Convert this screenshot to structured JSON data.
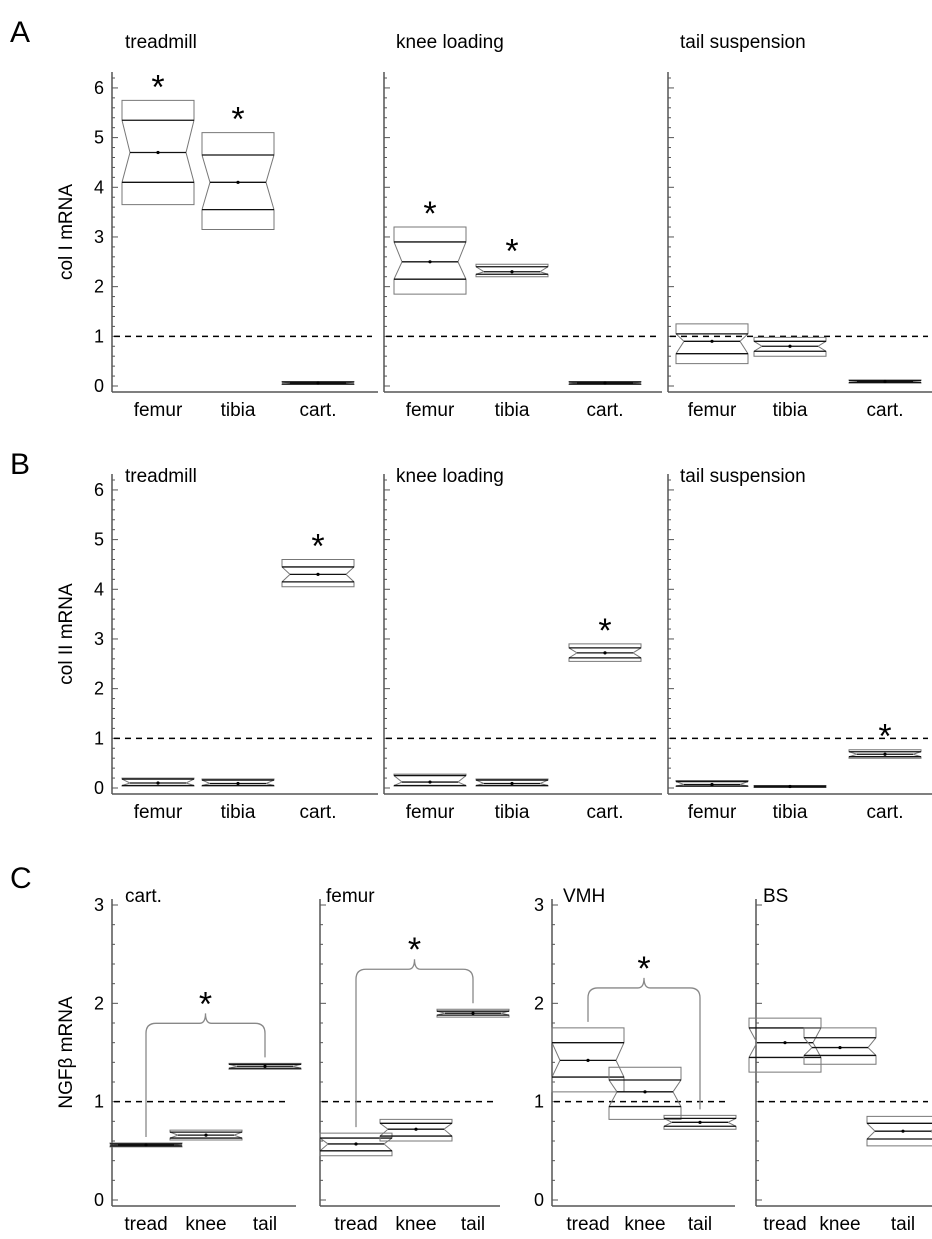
{
  "figure": {
    "panel_letters": [
      "A",
      "B",
      "C"
    ]
  },
  "chart_data": [
    {
      "type": "box",
      "panel": "A",
      "ylabel": "col I mRNA",
      "ylim": [
        0,
        6.2
      ],
      "yticks": [
        0,
        1,
        2,
        3,
        4,
        5,
        6
      ],
      "reference_line": 1,
      "show_y_numbers": true,
      "title": "treadmill",
      "categories": [
        "femur",
        "tibia",
        "cart."
      ],
      "boxes": [
        {
          "q1": 4.1,
          "median": 4.7,
          "q3": 5.35,
          "lo": 3.65,
          "hi": 5.75,
          "star": true
        },
        {
          "q1": 3.55,
          "median": 4.1,
          "q3": 4.65,
          "lo": 3.15,
          "hi": 5.1,
          "star": true
        },
        {
          "q1": 0.04,
          "median": 0.06,
          "q3": 0.08,
          "lo": 0.03,
          "hi": 0.09,
          "star": false
        }
      ]
    },
    {
      "type": "box",
      "panel": "A",
      "ylim": [
        0,
        6.2
      ],
      "yticks": [
        0,
        1,
        2,
        3,
        4,
        5,
        6
      ],
      "reference_line": 1,
      "show_y_numbers": false,
      "title": "knee loading",
      "categories": [
        "femur",
        "tibia",
        "cart."
      ],
      "boxes": [
        {
          "q1": 2.15,
          "median": 2.5,
          "q3": 2.9,
          "lo": 1.85,
          "hi": 3.2,
          "star": true
        },
        {
          "q1": 2.25,
          "median": 2.3,
          "q3": 2.4,
          "lo": 2.2,
          "hi": 2.45,
          "star": true
        },
        {
          "q1": 0.04,
          "median": 0.06,
          "q3": 0.08,
          "lo": 0.03,
          "hi": 0.09,
          "star": false
        }
      ]
    },
    {
      "type": "box",
      "panel": "A",
      "ylim": [
        0,
        6.2
      ],
      "yticks": [
        0,
        1,
        2,
        3,
        4,
        5,
        6
      ],
      "reference_line": 1,
      "show_y_numbers": false,
      "title": "tail suspension",
      "categories": [
        "femur",
        "tibia",
        "cart."
      ],
      "boxes": [
        {
          "q1": 0.65,
          "median": 0.9,
          "q3": 1.05,
          "lo": 0.45,
          "hi": 1.25,
          "star": false
        },
        {
          "q1": 0.7,
          "median": 0.8,
          "q3": 0.9,
          "lo": 0.6,
          "hi": 0.98,
          "star": false
        },
        {
          "q1": 0.07,
          "median": 0.09,
          "q3": 0.11,
          "lo": 0.06,
          "hi": 0.12,
          "star": false
        }
      ]
    },
    {
      "type": "box",
      "panel": "B",
      "ylabel": "col II mRNA",
      "ylim": [
        0,
        6.2
      ],
      "yticks": [
        0,
        1,
        2,
        3,
        4,
        5,
        6
      ],
      "reference_line": 1,
      "show_y_numbers": true,
      "title": "treadmill",
      "categories": [
        "femur",
        "tibia",
        "cart."
      ],
      "boxes": [
        {
          "q1": 0.05,
          "median": 0.1,
          "q3": 0.18,
          "lo": 0.04,
          "hi": 0.2,
          "star": false
        },
        {
          "q1": 0.05,
          "median": 0.09,
          "q3": 0.16,
          "lo": 0.04,
          "hi": 0.18,
          "star": false
        },
        {
          "q1": 4.15,
          "median": 4.3,
          "q3": 4.45,
          "lo": 4.05,
          "hi": 4.6,
          "star": true
        }
      ]
    },
    {
      "type": "box",
      "panel": "B",
      "ylim": [
        0,
        6.2
      ],
      "yticks": [
        0,
        1,
        2,
        3,
        4,
        5,
        6
      ],
      "reference_line": 1,
      "show_y_numbers": false,
      "title": "knee loading",
      "categories": [
        "femur",
        "tibia",
        "cart."
      ],
      "boxes": [
        {
          "q1": 0.05,
          "median": 0.12,
          "q3": 0.25,
          "lo": 0.04,
          "hi": 0.28,
          "star": false
        },
        {
          "q1": 0.05,
          "median": 0.09,
          "q3": 0.16,
          "lo": 0.04,
          "hi": 0.18,
          "star": false
        },
        {
          "q1": 2.62,
          "median": 2.72,
          "q3": 2.82,
          "lo": 2.55,
          "hi": 2.9,
          "star": true
        }
      ]
    },
    {
      "type": "box",
      "panel": "B",
      "ylim": [
        0,
        6.2
      ],
      "yticks": [
        0,
        1,
        2,
        3,
        4,
        5,
        6
      ],
      "reference_line": 1,
      "show_y_numbers": false,
      "title": "tail suspension",
      "categories": [
        "femur",
        "tibia",
        "cart."
      ],
      "boxes": [
        {
          "q1": 0.04,
          "median": 0.07,
          "q3": 0.13,
          "lo": 0.03,
          "hi": 0.15,
          "star": false
        },
        {
          "q1": 0.02,
          "median": 0.03,
          "q3": 0.04,
          "lo": 0.01,
          "hi": 0.05,
          "star": false
        },
        {
          "q1": 0.63,
          "median": 0.68,
          "q3": 0.73,
          "lo": 0.6,
          "hi": 0.77,
          "star": true
        }
      ]
    },
    {
      "type": "box",
      "panel": "C",
      "ylabel": "NGFβ mRNA",
      "ylim": [
        0,
        3
      ],
      "yticks": [
        0,
        1,
        2,
        3
      ],
      "reference_line": 1,
      "show_y_numbers": true,
      "title": "cart.",
      "categories": [
        "tread",
        "knee",
        "tail"
      ],
      "bracket": true,
      "boxes": [
        {
          "q1": 0.55,
          "median": 0.56,
          "q3": 0.57,
          "lo": 0.54,
          "hi": 0.58,
          "star": false
        },
        {
          "q1": 0.63,
          "median": 0.66,
          "q3": 0.69,
          "lo": 0.61,
          "hi": 0.71,
          "star": false
        },
        {
          "q1": 1.34,
          "median": 1.36,
          "q3": 1.38,
          "lo": 1.33,
          "hi": 1.39,
          "star": false
        }
      ]
    },
    {
      "type": "box",
      "panel": "C",
      "ylim": [
        0,
        3
      ],
      "yticks": [
        0,
        1,
        2,
        3
      ],
      "reference_line": 1,
      "show_y_numbers": false,
      "title": "femur",
      "categories": [
        "tread",
        "knee",
        "tail"
      ],
      "bracket": true,
      "boxes": [
        {
          "q1": 0.5,
          "median": 0.57,
          "q3": 0.63,
          "lo": 0.45,
          "hi": 0.68,
          "star": false
        },
        {
          "q1": 0.65,
          "median": 0.72,
          "q3": 0.78,
          "lo": 0.6,
          "hi": 0.82,
          "star": false
        },
        {
          "q1": 1.88,
          "median": 1.9,
          "q3": 1.92,
          "lo": 1.86,
          "hi": 1.94,
          "star": false
        }
      ]
    },
    {
      "type": "box",
      "panel": "C",
      "ylim": [
        0,
        3
      ],
      "yticks": [
        0,
        1,
        2,
        3
      ],
      "reference_line": 1,
      "show_y_numbers": true,
      "title": "VMH",
      "categories": [
        "tread",
        "knee",
        "tail"
      ],
      "bracket": true,
      "boxes": [
        {
          "q1": 1.25,
          "median": 1.42,
          "q3": 1.6,
          "lo": 1.1,
          "hi": 1.75,
          "star": false
        },
        {
          "q1": 0.95,
          "median": 1.1,
          "q3": 1.22,
          "lo": 0.82,
          "hi": 1.35,
          "star": false
        },
        {
          "q1": 0.75,
          "median": 0.79,
          "q3": 0.83,
          "lo": 0.72,
          "hi": 0.86,
          "star": false
        }
      ]
    },
    {
      "type": "box",
      "panel": "C",
      "ylim": [
        0,
        3
      ],
      "yticks": [
        0,
        1,
        2,
        3
      ],
      "reference_line": 1,
      "show_y_numbers": false,
      "title": "BS",
      "categories": [
        "tread",
        "knee",
        "tail"
      ],
      "bracket": false,
      "boxes": [
        {
          "q1": 1.45,
          "median": 1.6,
          "q3": 1.75,
          "lo": 1.3,
          "hi": 1.85,
          "star": false
        },
        {
          "q1": 1.47,
          "median": 1.55,
          "q3": 1.65,
          "lo": 1.38,
          "hi": 1.75,
          "star": false
        },
        {
          "q1": 0.62,
          "median": 0.7,
          "q3": 0.78,
          "lo": 0.55,
          "hi": 0.85,
          "star": false
        }
      ]
    }
  ]
}
